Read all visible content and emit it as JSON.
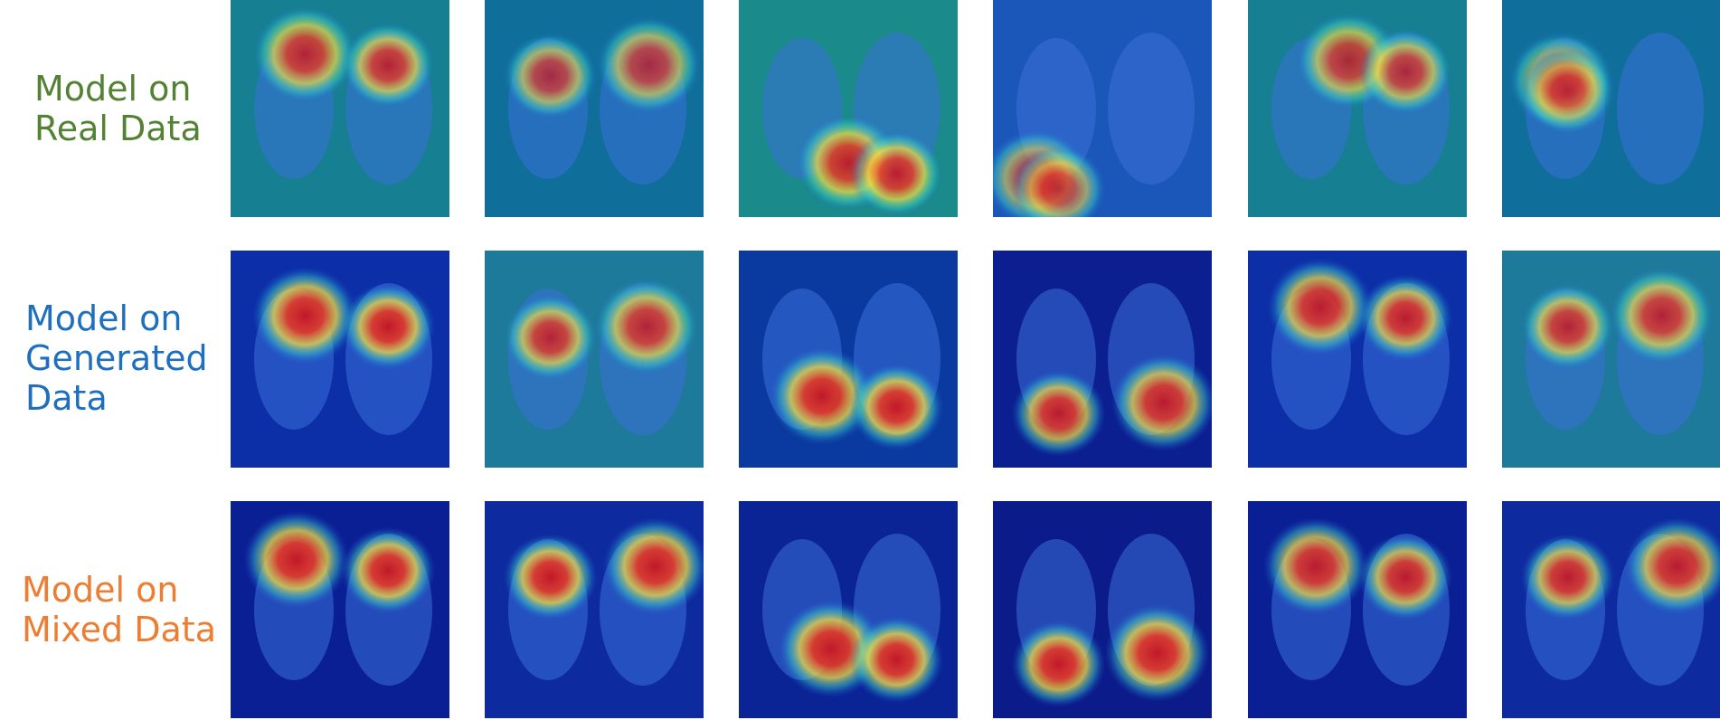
{
  "rows": [
    {
      "label": "Model on\nReal Data",
      "label_color": "#548235",
      "field": [
        "#167f92",
        "#0f6f9a",
        "#1a8a8a",
        "#1b57b8"
      ],
      "hot": [
        [
          0.34,
          0.25,
          0.9
        ],
        [
          0.75,
          0.3,
          0.8
        ],
        [
          0.5,
          0.75,
          0.95
        ],
        [
          0.2,
          0.82,
          0.75
        ],
        [
          0.46,
          0.28,
          0.85
        ],
        [
          0.27,
          0.37,
          0.7
        ]
      ]
    },
    {
      "label": "Model on\nGenerated\nData",
      "label_color": "#1f6fbf",
      "field": [
        "#0c2fa8",
        "#1e7a9a",
        "#0a3aa0",
        "#0b1f90"
      ],
      "hot": [
        [
          0.34,
          0.3,
          1
        ],
        [
          0.74,
          0.35,
          0.9
        ],
        [
          0.38,
          0.67,
          1
        ],
        [
          0.78,
          0.7,
          0.95
        ],
        [
          0.33,
          0.26,
          0.95
        ],
        [
          0.73,
          0.3,
          0.9
        ]
      ]
    },
    {
      "label": "Model on\nMixed Data",
      "label_color": "#ed7d31",
      "field": [
        "#0b1f95",
        "#0d2a9f",
        "#0a2496",
        "#0b1b8a"
      ],
      "hot": [
        [
          0.3,
          0.27,
          1
        ],
        [
          0.78,
          0.3,
          1
        ],
        [
          0.42,
          0.68,
          1
        ],
        [
          0.75,
          0.7,
          1
        ],
        [
          0.31,
          0.3,
          0.95
        ],
        [
          0.8,
          0.3,
          0.95
        ]
      ]
    }
  ],
  "columns": 6
}
